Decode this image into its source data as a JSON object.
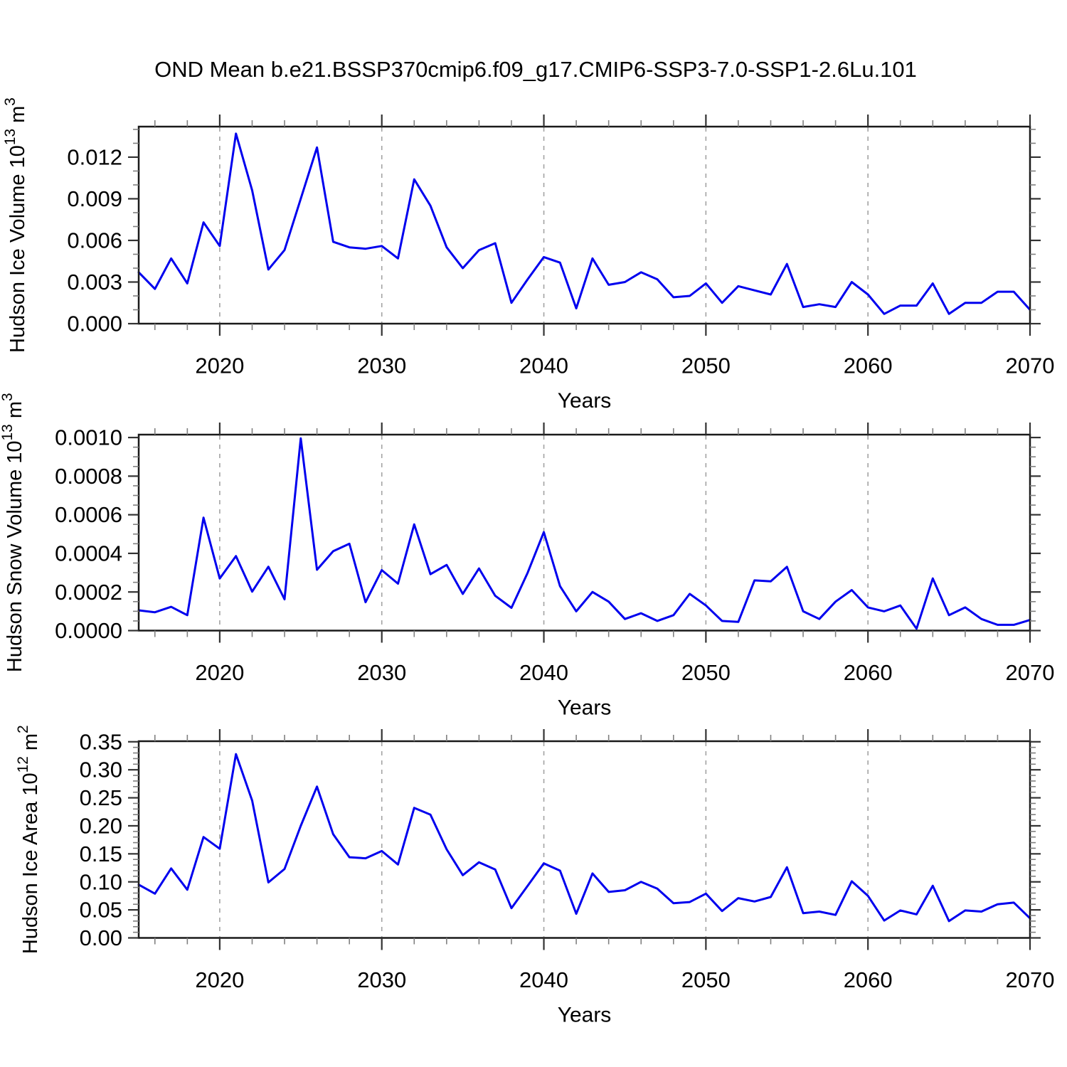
{
  "title": "OND Mean b.e21.BSSP370cmip6.f09_g17.CMIP6-SSP3-7.0-SSP1-2.6Lu.101",
  "colors": {
    "line": "#0000EE",
    "frame": "#1a1a1a",
    "major_tick": "#333333",
    "minor_tick": "#808080",
    "gridline": "#a3a3a3",
    "background": "#ffffff"
  },
  "chart_data": {
    "type": "line",
    "x": {
      "label": "Years",
      "min": 2015,
      "max": 2070,
      "major_ticks": [
        2020,
        2030,
        2040,
        2050,
        2060,
        2070
      ],
      "major_tick_labels": [
        "2020",
        "2030",
        "2040",
        "2050",
        "2060",
        "2070"
      ],
      "minor_step": 2,
      "decade_gridlines": [
        2020,
        2030,
        2040,
        2050,
        2060
      ],
      "years": [
        2015,
        2016,
        2017,
        2018,
        2019,
        2020,
        2021,
        2022,
        2023,
        2024,
        2025,
        2026,
        2027,
        2028,
        2029,
        2030,
        2031,
        2032,
        2033,
        2034,
        2035,
        2036,
        2037,
        2038,
        2039,
        2040,
        2041,
        2042,
        2043,
        2044,
        2045,
        2046,
        2047,
        2048,
        2049,
        2050,
        2051,
        2052,
        2053,
        2054,
        2055,
        2056,
        2057,
        2058,
        2059,
        2060,
        2061,
        2062,
        2063,
        2064,
        2065,
        2066,
        2067,
        2068,
        2069,
        2070
      ]
    },
    "panels": [
      {
        "name": "hudson-ice-volume",
        "ylabel": {
          "main": "Hudson Ice Volume 10",
          "sup": "13",
          "unit": " m",
          "unit_sup": "3"
        },
        "ylim": [
          0,
          0.0142
        ],
        "yticks": [
          0,
          0.003,
          0.006,
          0.009,
          0.012
        ],
        "ytick_labels": [
          "0.000",
          "0.003",
          "0.006",
          "0.009",
          "0.012"
        ],
        "minor_step": 0.001,
        "values": [
          0.0037,
          0.0025,
          0.0047,
          0.0029,
          0.0073,
          0.0056,
          0.0137,
          0.0096,
          0.0039,
          0.0053,
          0.009,
          0.0127,
          0.0059,
          0.0055,
          0.0054,
          0.0056,
          0.0047,
          0.0104,
          0.0085,
          0.0055,
          0.004,
          0.0053,
          0.0058,
          0.0015,
          0.0032,
          0.0048,
          0.0044,
          0.0011,
          0.0047,
          0.0028,
          0.003,
          0.0037,
          0.0032,
          0.0019,
          0.002,
          0.0029,
          0.0015,
          0.0027,
          0.0024,
          0.0021,
          0.0043,
          0.0012,
          0.0014,
          0.0012,
          0.003,
          0.0021,
          0.0007,
          0.0013,
          0.0013,
          0.0029,
          0.0007,
          0.0015,
          0.0015,
          0.0023,
          0.0023,
          0.001
        ]
      },
      {
        "name": "hudson-snow-volume",
        "ylabel": {
          "main": "Hudson Snow Volume 10",
          "sup": "13",
          "unit": " m",
          "unit_sup": "3"
        },
        "ylim": [
          0,
          0.001015
        ],
        "yticks": [
          0,
          0.0002,
          0.0004,
          0.0006,
          0.0008,
          0.001
        ],
        "ytick_labels": [
          "0.0000",
          "0.0002",
          "0.0004",
          "0.0006",
          "0.0008",
          "0.0010"
        ],
        "minor_step": 5e-05,
        "values": [
          0.000105,
          9.5e-05,
          0.000123,
          8e-05,
          0.000585,
          0.00027,
          0.000386,
          0.000202,
          0.000331,
          0.000162,
          0.000996,
          0.000315,
          0.000411,
          0.00045,
          0.000147,
          0.000313,
          0.000243,
          0.00055,
          0.000292,
          0.00034,
          0.00019,
          0.000322,
          0.00018,
          0.000118,
          0.0003,
          0.00051,
          0.00023,
          0.0001,
          0.0002,
          0.00015,
          6e-05,
          9e-05,
          5e-05,
          8e-05,
          0.00019,
          0.00013,
          5e-05,
          4.5e-05,
          0.00026,
          0.000255,
          0.00033,
          0.0001,
          6e-05,
          0.00015,
          0.00021,
          0.00012,
          0.0001,
          0.00013,
          1e-05,
          0.00027,
          8e-05,
          0.00012,
          6e-05,
          3e-05,
          3e-05,
          5.5e-05
        ]
      },
      {
        "name": "hudson-ice-area",
        "ylabel": {
          "main": "Hudson Ice Area 10",
          "sup": "12",
          "unit": " m",
          "unit_sup": "2"
        },
        "ylim": [
          0,
          0.351
        ],
        "yticks": [
          0,
          0.05,
          0.1,
          0.15,
          0.2,
          0.25,
          0.3,
          0.35
        ],
        "ytick_labels": [
          "0.00",
          "0.05",
          "0.10",
          "0.15",
          "0.20",
          "0.25",
          "0.30",
          "0.35"
        ],
        "minor_step": 0.01,
        "values": [
          0.095,
          0.079,
          0.124,
          0.086,
          0.18,
          0.159,
          0.328,
          0.245,
          0.099,
          0.123,
          0.2,
          0.27,
          0.185,
          0.144,
          0.142,
          0.155,
          0.131,
          0.232,
          0.22,
          0.158,
          0.112,
          0.135,
          0.122,
          0.053,
          0.093,
          0.133,
          0.12,
          0.043,
          0.115,
          0.082,
          0.085,
          0.1,
          0.088,
          0.062,
          0.064,
          0.079,
          0.048,
          0.071,
          0.065,
          0.073,
          0.126,
          0.044,
          0.047,
          0.041,
          0.101,
          0.075,
          0.031,
          0.049,
          0.042,
          0.093,
          0.03,
          0.049,
          0.047,
          0.06,
          0.063,
          0.035
        ]
      }
    ]
  }
}
